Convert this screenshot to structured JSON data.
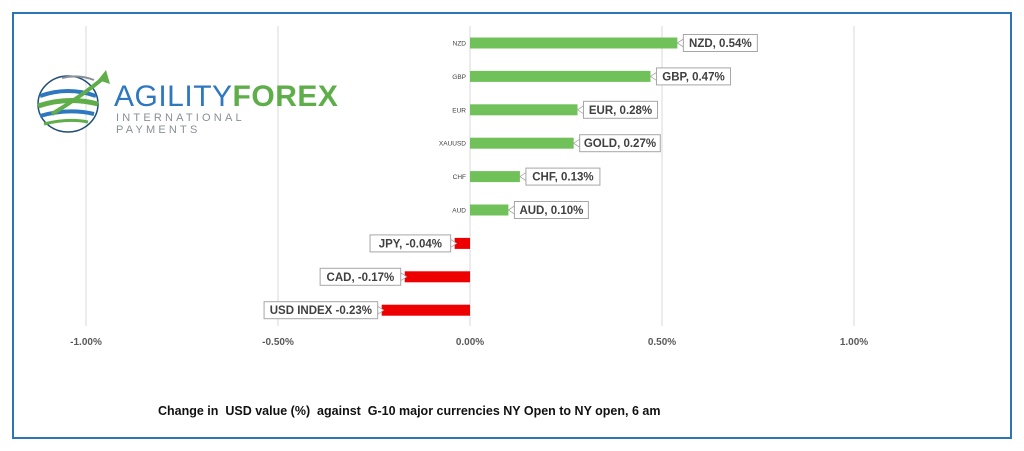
{
  "logo": {
    "word1": "AGILITY",
    "word2": "FOREX",
    "subtitle": "INTERNATIONAL PAYMENTS",
    "colors": {
      "blue": "#2e78c0",
      "green": "#5fae4a",
      "grey": "#8a8f96"
    }
  },
  "caption": "Change in  USD value (%)  against  G-10 major currencies NY Open to NY open, 6 am",
  "chart_data": {
    "type": "bar",
    "orientation": "horizontal",
    "xlim": [
      -1.0,
      1.0
    ],
    "x_ticks": [
      {
        "value": -1.0,
        "label": "-1.00%"
      },
      {
        "value": -0.5,
        "label": "-0.50%"
      },
      {
        "value": 0.0,
        "label": "0.00%"
      },
      {
        "value": 0.5,
        "label": "0.50%"
      },
      {
        "value": 1.0,
        "label": "1.00%"
      }
    ],
    "grid": "vertical",
    "colors": {
      "positive": "#70c15a",
      "negative": "#ee0000",
      "grid": "#d9d9d9"
    },
    "bars": [
      {
        "category": "NZD",
        "value": 0.54,
        "label": "NZD, 0.54%"
      },
      {
        "category": "GBP",
        "value": 0.47,
        "label": "GBP, 0.47%"
      },
      {
        "category": "EUR",
        "value": 0.28,
        "label": "EUR, 0.28%"
      },
      {
        "category": "XAUUSD",
        "value": 0.27,
        "label": "GOLD, 0.27%"
      },
      {
        "category": "CHF",
        "value": 0.13,
        "label": "CHF, 0.13%"
      },
      {
        "category": "AUD",
        "value": 0.1,
        "label": "AUD, 0.10%"
      },
      {
        "category": "",
        "value": -0.04,
        "label": "JPY, -0.04%"
      },
      {
        "category": "",
        "value": -0.17,
        "label": "CAD, -0.17%"
      },
      {
        "category": "",
        "value": -0.23,
        "label": "USD INDEX -0.23%"
      }
    ]
  }
}
